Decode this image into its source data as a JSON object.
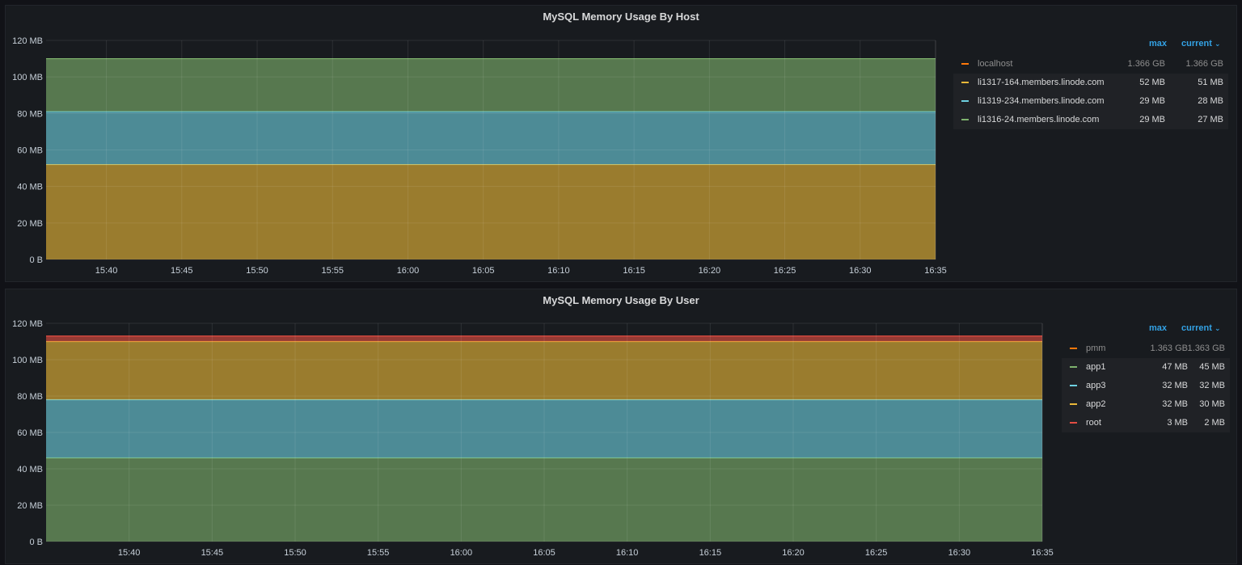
{
  "panels": [
    {
      "title": "MySQL Memory Usage By Host",
      "legend": {
        "max_label": "max",
        "current_label": "current",
        "sort_icon": "chevron-down-icon",
        "rows": [
          {
            "name": "localhost",
            "color": "#ff780a",
            "max": "1.366 GB",
            "current": "1.366 GB",
            "dim": true
          },
          {
            "name": "li1317-164.members.linode.com",
            "color": "#eab839",
            "max": "52 MB",
            "current": "51 MB",
            "dim": false
          },
          {
            "name": "li1319-234.members.linode.com",
            "color": "#6ed0e0",
            "max": "29 MB",
            "current": "28 MB",
            "dim": false
          },
          {
            "name": "li1316-24.members.linode.com",
            "color": "#7eb26d",
            "max": "29 MB",
            "current": "27 MB",
            "dim": false
          }
        ]
      }
    },
    {
      "title": "MySQL Memory Usage By User",
      "legend": {
        "max_label": "max",
        "current_label": "current",
        "sort_icon": "chevron-down-icon",
        "rows": [
          {
            "name": "pmm",
            "color": "#ff780a",
            "max": "1.363 GB",
            "current": "1.363 GB",
            "dim": true
          },
          {
            "name": "app1",
            "color": "#7eb26d",
            "max": "47 MB",
            "current": "45 MB",
            "dim": false
          },
          {
            "name": "app3",
            "color": "#6ed0e0",
            "max": "32 MB",
            "current": "32 MB",
            "dim": false
          },
          {
            "name": "app2",
            "color": "#eab839",
            "max": "32 MB",
            "current": "30 MB",
            "dim": false
          },
          {
            "name": "root",
            "color": "#e24d42",
            "max": "3 MB",
            "current": "2 MB",
            "dim": false
          }
        ]
      }
    }
  ],
  "chart_data": [
    {
      "type": "area",
      "stacked": true,
      "title": "MySQL Memory Usage By Host",
      "x_range": [
        "15:36",
        "16:35"
      ],
      "x_ticks": [
        "15:40",
        "15:45",
        "15:50",
        "15:55",
        "16:00",
        "16:05",
        "16:10",
        "16:15",
        "16:20",
        "16:25",
        "16:30",
        "16:35"
      ],
      "y_ticks": [
        "0 B",
        "20 MB",
        "40 MB",
        "60 MB",
        "80 MB",
        "100 MB",
        "120 MB"
      ],
      "ylim": [
        0,
        120
      ],
      "y_unit": "MB",
      "series": [
        {
          "name": "li1317-164.members.linode.com",
          "color": "#eab839",
          "value": 52
        },
        {
          "name": "li1319-234.members.linode.com",
          "color": "#6ed0e0",
          "value": 29
        },
        {
          "name": "li1316-24.members.linode.com",
          "color": "#7eb26d",
          "value": 29
        }
      ]
    },
    {
      "type": "area",
      "stacked": true,
      "title": "MySQL Memory Usage By User",
      "x_range": [
        "15:35",
        "16:35"
      ],
      "x_ticks": [
        "15:40",
        "15:45",
        "15:50",
        "15:55",
        "16:00",
        "16:05",
        "16:10",
        "16:15",
        "16:20",
        "16:25",
        "16:30",
        "16:35"
      ],
      "y_ticks": [
        "0 B",
        "20 MB",
        "40 MB",
        "60 MB",
        "80 MB",
        "100 MB",
        "120 MB"
      ],
      "ylim": [
        0,
        120
      ],
      "y_unit": "MB",
      "series": [
        {
          "name": "app1",
          "color": "#7eb26d",
          "value": 46
        },
        {
          "name": "app3",
          "color": "#6ed0e0",
          "value": 32
        },
        {
          "name": "app2",
          "color": "#eab839",
          "value": 32
        },
        {
          "name": "root",
          "color": "#e24d42",
          "value": 3
        }
      ]
    }
  ]
}
